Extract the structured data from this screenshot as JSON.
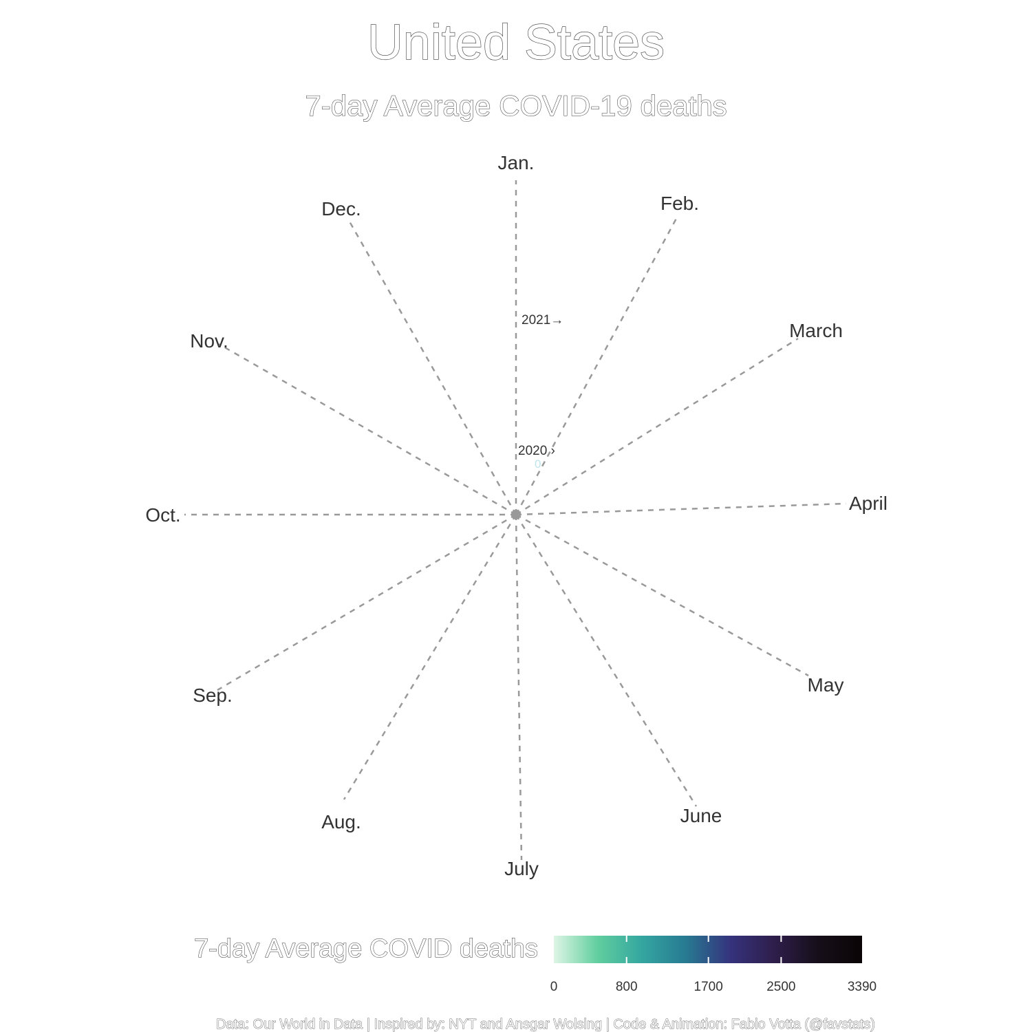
{
  "chart_data": {
    "type": "radial-line",
    "title": "United States",
    "subtitle": "7-day Average COVID-19 deaths",
    "months": [
      "Jan.",
      "Feb.",
      "March",
      "April",
      "May",
      "June",
      "July",
      "Aug.",
      "Sep.",
      "Oct.",
      "Nov.",
      "Dec."
    ],
    "year_markers": [
      {
        "label": "2020 ›"
      },
      {
        "label": "2021→"
      }
    ],
    "zero_label": "0",
    "legend": {
      "title": "7-day Average COVID deaths",
      "ticks": [
        0,
        800,
        1700,
        2500,
        3390
      ],
      "range": [
        0,
        3390
      ],
      "colors": [
        "#def5e5",
        "#60ce9e",
        "#34a6a0",
        "#277a92",
        "#35337d",
        "#2e1e4b",
        "#160f1a",
        "#0b0405"
      ]
    },
    "caption": "Data: Our World in Data | Inspired by: NYT and Ansgar Wolsing | Code & Animation: Fabio Votta (@favstats)"
  }
}
